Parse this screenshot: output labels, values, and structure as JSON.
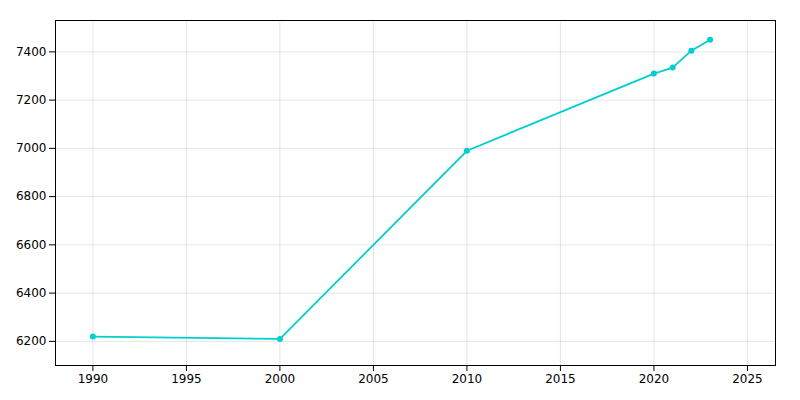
{
  "chart_data": {
    "type": "line",
    "x": [
      1990,
      2000,
      2010,
      2020,
      2021,
      2022,
      2023
    ],
    "values": [
      6220,
      6210,
      6990,
      7310,
      7335,
      7405,
      7450
    ],
    "color": "#00CED1",
    "marker": "circle",
    "xlim": [
      1988,
      2026.5
    ],
    "ylim": [
      6100,
      7530
    ],
    "xticks": [
      1990,
      1995,
      2000,
      2005,
      2010,
      2015,
      2020,
      2025
    ],
    "yticks": [
      6200,
      6400,
      6600,
      6800,
      7000,
      7200,
      7400
    ],
    "grid": true
  }
}
